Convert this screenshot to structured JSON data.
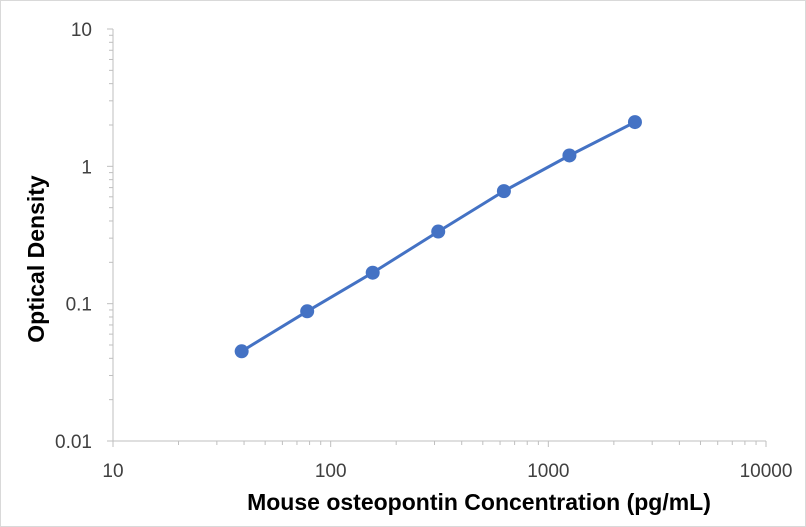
{
  "chart_data": {
    "type": "scatter",
    "title": "",
    "xlabel": "Mouse osteopontin Concentration (pg/mL)",
    "ylabel": "Optical Density",
    "x_scale": "log",
    "y_scale": "log",
    "xlim": [
      10,
      10000
    ],
    "ylim": [
      0.01,
      10
    ],
    "x_ticks": [
      "10",
      "100",
      "1000",
      "10000"
    ],
    "y_ticks": [
      "0.01",
      "0.1",
      "1",
      "10"
    ],
    "grid": false,
    "legend": "none",
    "series": [
      {
        "color": "#4472C4",
        "marker": "circle",
        "line": true,
        "x": [
          39,
          78,
          156,
          312,
          625,
          1250,
          2500
        ],
        "y": [
          0.045,
          0.088,
          0.168,
          0.335,
          0.66,
          1.2,
          2.1
        ]
      }
    ]
  }
}
